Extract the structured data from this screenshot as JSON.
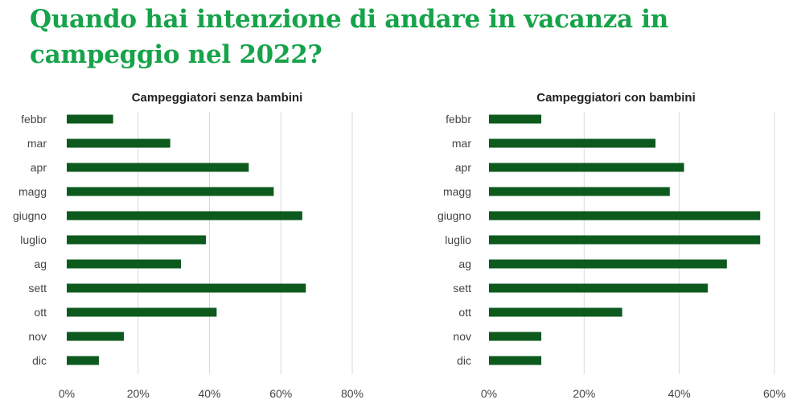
{
  "title": "Quando hai intenzione di andare in vacanza in campeggio nel 2022?",
  "colors": {
    "title": "#16a34a",
    "bar": "#0d5a1e",
    "grid": "#d9d9d9"
  },
  "chart_data": [
    {
      "type": "bar",
      "orientation": "horizontal",
      "title": "Campeggiatori senza bambini",
      "categories": [
        "febbr",
        "mar",
        "apr",
        "magg",
        "giugno",
        "luglio",
        "ag",
        "sett",
        "ott",
        "nov",
        "dic"
      ],
      "values": [
        13,
        29,
        51,
        58,
        66,
        39,
        32,
        67,
        42,
        16,
        9
      ],
      "xlim": [
        0,
        80
      ],
      "ticks": [
        "0%",
        "20%",
        "40%",
        "60%",
        "80%"
      ],
      "tick_values": [
        0,
        20,
        40,
        60,
        80
      ],
      "grid": true
    },
    {
      "type": "bar",
      "orientation": "horizontal",
      "title": "Campeggiatori con bambini",
      "categories": [
        "febbr",
        "mar",
        "apr",
        "magg",
        "giugno",
        "luglio",
        "ag",
        "sett",
        "ott",
        "nov",
        "dic"
      ],
      "values": [
        11,
        35,
        41,
        38,
        57,
        57,
        50,
        46,
        28,
        11,
        11
      ],
      "xlim": [
        0,
        60
      ],
      "ticks": [
        "0%",
        "20%",
        "40%",
        "60%"
      ],
      "tick_values": [
        0,
        20,
        40,
        60
      ],
      "grid": true
    }
  ]
}
